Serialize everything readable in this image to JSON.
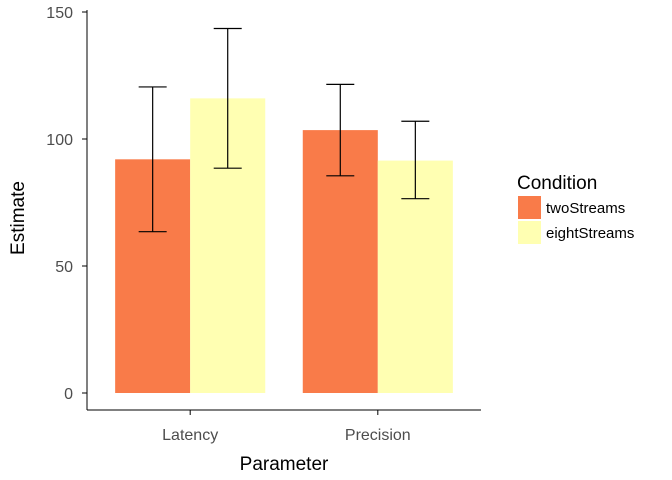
{
  "chart_data": {
    "type": "bar",
    "categories": [
      "Latency",
      "Precision"
    ],
    "series": [
      {
        "name": "twoStreams",
        "color": "#F97B49",
        "values": [
          92,
          103.5
        ],
        "error_low": [
          63.5,
          85.5
        ],
        "error_high": [
          120.5,
          121.5
        ]
      },
      {
        "name": "eightStreams",
        "color": "#FFFFB2",
        "values": [
          116,
          91.5
        ],
        "error_low": [
          88.5,
          76.5
        ],
        "error_high": [
          143.5,
          107
        ]
      }
    ],
    "yticks": [
      0,
      50,
      100,
      150
    ],
    "ylim": [
      -7,
      150
    ],
    "xlabel": "Parameter",
    "ylabel": "Estimate",
    "legend": {
      "title": "Condition",
      "position": "right"
    },
    "grid": false
  }
}
